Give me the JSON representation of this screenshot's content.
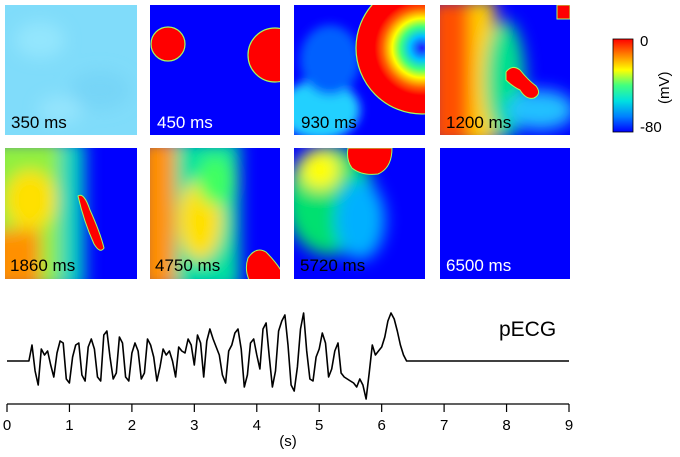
{
  "figure": {
    "panels": [
      {
        "time_label": "350 ms",
        "label_color": "#000000"
      },
      {
        "time_label": "450 ms",
        "label_color": "#ffffff"
      },
      {
        "time_label": "930 ms",
        "label_color": "#000000"
      },
      {
        "time_label": "1200 ms",
        "label_color": "#000000"
      },
      {
        "time_label": "1860 ms",
        "label_color": "#000000"
      },
      {
        "time_label": "4750 ms",
        "label_color": "#000000"
      },
      {
        "time_label": "5720 ms",
        "label_color": "#000000"
      },
      {
        "time_label": "6500 ms",
        "label_color": "#ffffff"
      }
    ],
    "colorbar": {
      "max_label": "0",
      "min_label": "-80",
      "unit_label": "(mV)",
      "colors": [
        "#0000ff",
        "#0080ff",
        "#00e0e0",
        "#40ff80",
        "#ffff00",
        "#ff8000",
        "#ff0000"
      ]
    }
  },
  "chart_data": {
    "type": "line",
    "title": "pECG",
    "xlabel": "(s)",
    "ylabel": "",
    "xlim": [
      0,
      9
    ],
    "x_ticks": [
      "0",
      "1",
      "2",
      "3",
      "4",
      "5",
      "6",
      "7",
      "8",
      "9"
    ],
    "series": [
      {
        "name": "pECG",
        "x": [
          0,
          0.35,
          0.4,
          0.45,
          0.5,
          0.55,
          0.6,
          0.65,
          0.7,
          0.75,
          0.8,
          0.85,
          0.9,
          0.95,
          1.0,
          1.05,
          1.1,
          1.15,
          1.2,
          1.25,
          1.3,
          1.35,
          1.4,
          1.45,
          1.5,
          1.55,
          1.6,
          1.65,
          1.7,
          1.75,
          1.8,
          1.85,
          1.9,
          1.95,
          2.0,
          2.05,
          2.1,
          2.15,
          2.2,
          2.25,
          2.3,
          2.35,
          2.4,
          2.45,
          2.5,
          2.55,
          2.6,
          2.65,
          2.7,
          2.75,
          2.8,
          2.85,
          2.9,
          2.95,
          3.0,
          3.05,
          3.1,
          3.15,
          3.2,
          3.25,
          3.3,
          3.35,
          3.4,
          3.45,
          3.5,
          3.55,
          3.6,
          3.65,
          3.7,
          3.75,
          3.8,
          3.85,
          3.9,
          3.95,
          4.0,
          4.05,
          4.1,
          4.15,
          4.2,
          4.25,
          4.3,
          4.35,
          4.4,
          4.45,
          4.5,
          4.55,
          4.6,
          4.65,
          4.7,
          4.75,
          4.8,
          4.85,
          4.9,
          4.95,
          5.0,
          5.05,
          5.1,
          5.15,
          5.2,
          5.25,
          5.3,
          5.35,
          5.4,
          5.45,
          5.5,
          5.55,
          5.6,
          5.65,
          5.7,
          5.75,
          5.8,
          5.85,
          5.9,
          5.95,
          6.0,
          6.05,
          6.1,
          6.15,
          6.2,
          6.25,
          6.3,
          6.35,
          6.4,
          6.5,
          7.0,
          8.0,
          9.0
        ],
        "y": [
          0,
          0,
          0.8,
          -0.5,
          -1.2,
          0.6,
          0.3,
          0.5,
          -0.2,
          -0.8,
          0.4,
          1.0,
          0.9,
          -0.9,
          -1.1,
          0.2,
          0.8,
          0.9,
          -0.7,
          -1.0,
          0.7,
          1.1,
          0.6,
          -0.8,
          -1.0,
          1.3,
          1.5,
          0.2,
          -0.9,
          -0.6,
          1.2,
          0.9,
          -0.8,
          -1.0,
          0.4,
          0.9,
          0.5,
          -0.9,
          -0.6,
          1.1,
          0.8,
          0.2,
          -1.0,
          -0.3,
          0.6,
          0.3,
          0.5,
          0.0,
          -0.8,
          0.7,
          0.5,
          0.4,
          1.1,
          0.8,
          -0.2,
          1.3,
          0.9,
          -0.8,
          1.0,
          1.6,
          1.1,
          0.7,
          0.3,
          -0.7,
          -1.1,
          0.5,
          0.8,
          1.4,
          1.6,
          0.6,
          -1.3,
          -0.7,
          0.9,
          1.1,
          0.3,
          -0.4,
          1.6,
          1.9,
          0.2,
          -1.3,
          -0.5,
          1.5,
          2.0,
          2.3,
          0.8,
          -1.2,
          -1.5,
          -0.3,
          1.6,
          2.4,
          0.5,
          -0.9,
          -1.0,
          0.2,
          0.6,
          1.4,
          0.9,
          -0.8,
          -0.4,
          0.5,
          0.9,
          -0.6,
          -0.8,
          -0.9,
          -1.0,
          -1.1,
          -1.3,
          -0.9,
          -1.2,
          -1.9,
          -0.6,
          0.8,
          0.3,
          0.5,
          0.7,
          1.2,
          2.0,
          2.4,
          2.1,
          1.5,
          0.8,
          0.3,
          0.0,
          0.0,
          0.0,
          0.0,
          0.0
        ]
      }
    ]
  }
}
